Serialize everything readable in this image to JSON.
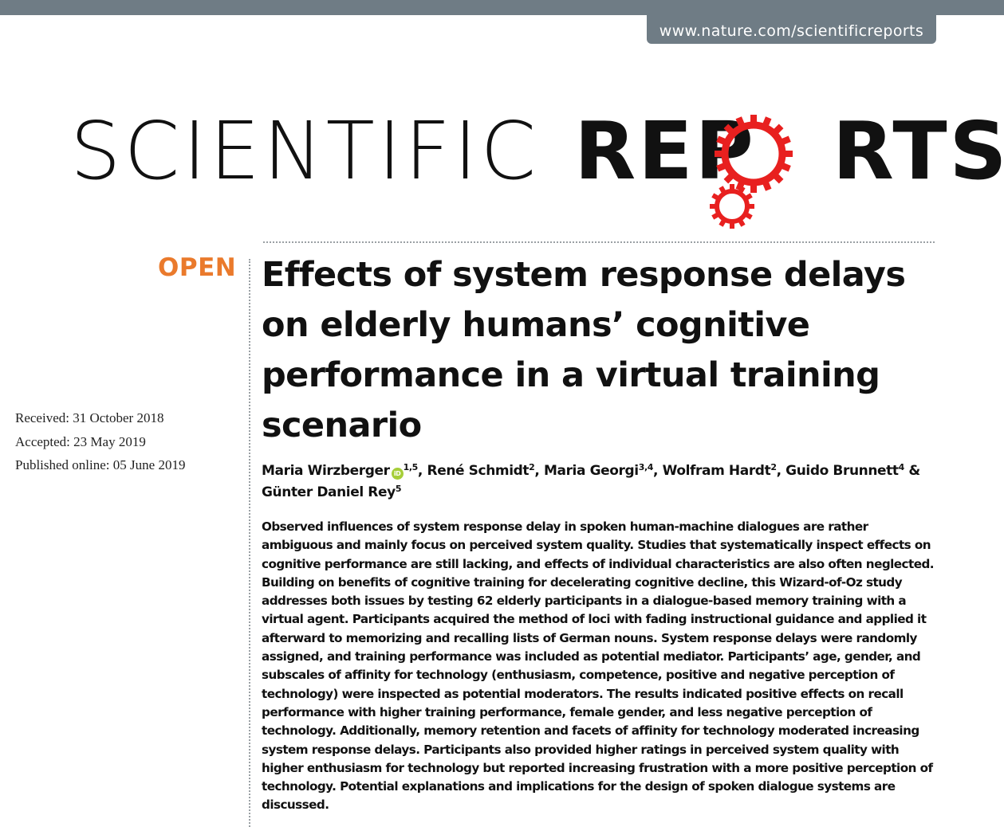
{
  "header": {
    "url": "www.nature.com/scientificreports"
  },
  "journal": {
    "name_part1": "SCIENTIFIC",
    "name_part2_start": "REP",
    "name_part2_end": "RTS",
    "brand_color": "#e8201f",
    "logo_icon": "gear-icon"
  },
  "article": {
    "access_label": "OPEN",
    "access_color": "#ea7a2c",
    "title": "Effects of system response delays on elderly humans’ cognitive performance in a virtual training scenario",
    "dates": {
      "received": "Received: 31 October 2018",
      "accepted": "Accepted: 23 May 2019",
      "published": "Published online: 05 June 2019"
    },
    "authors": [
      {
        "name": "Maria Wirzberger",
        "orcid": "iD",
        "affil": "1,5",
        "sep": ", "
      },
      {
        "name": "René Schmidt",
        "affil": "2",
        "sep": ", "
      },
      {
        "name": "Maria Georgi",
        "affil": "3,4",
        "sep": ", "
      },
      {
        "name": "Wolfram Hardt",
        "affil": "2",
        "sep": ", "
      },
      {
        "name": "Guido Brunnett",
        "affil": "4",
        "sep": " &"
      },
      {
        "name": "Günter Daniel Rey",
        "affil": "5",
        "sep": ""
      }
    ],
    "abstract": "Observed influences of system response delay in spoken human-machine dialogues are rather ambiguous and mainly focus on perceived system quality. Studies that systematically inspect effects on cognitive performance are still lacking, and effects of individual characteristics are also often neglected. Building on benefits of cognitive training for decelerating cognitive decline, this Wizard-of-Oz study addresses both issues by testing 62 elderly participants in a dialogue-based memory training with a virtual agent. Participants acquired the method of loci with fading instructional guidance and applied it afterward to memorizing and recalling lists of German nouns. System response delays were randomly assigned, and training performance was included as potential mediator. Participants’ age, gender, and subscales of affinity for technology (enthusiasm, competence, positive and negative perception of technology) were inspected as potential moderators. The results indicated positive effects on recall performance with higher training performance, female gender, and less negative perception of technology. Additionally, memory retention and facets of affinity for technology moderated increasing system response delays. Participants also provided higher ratings in perceived system quality with higher enthusiasm for technology but reported increasing frustration with a more positive perception of technology. Potential explanations and implications for the design of spoken dialogue systems are discussed."
  }
}
